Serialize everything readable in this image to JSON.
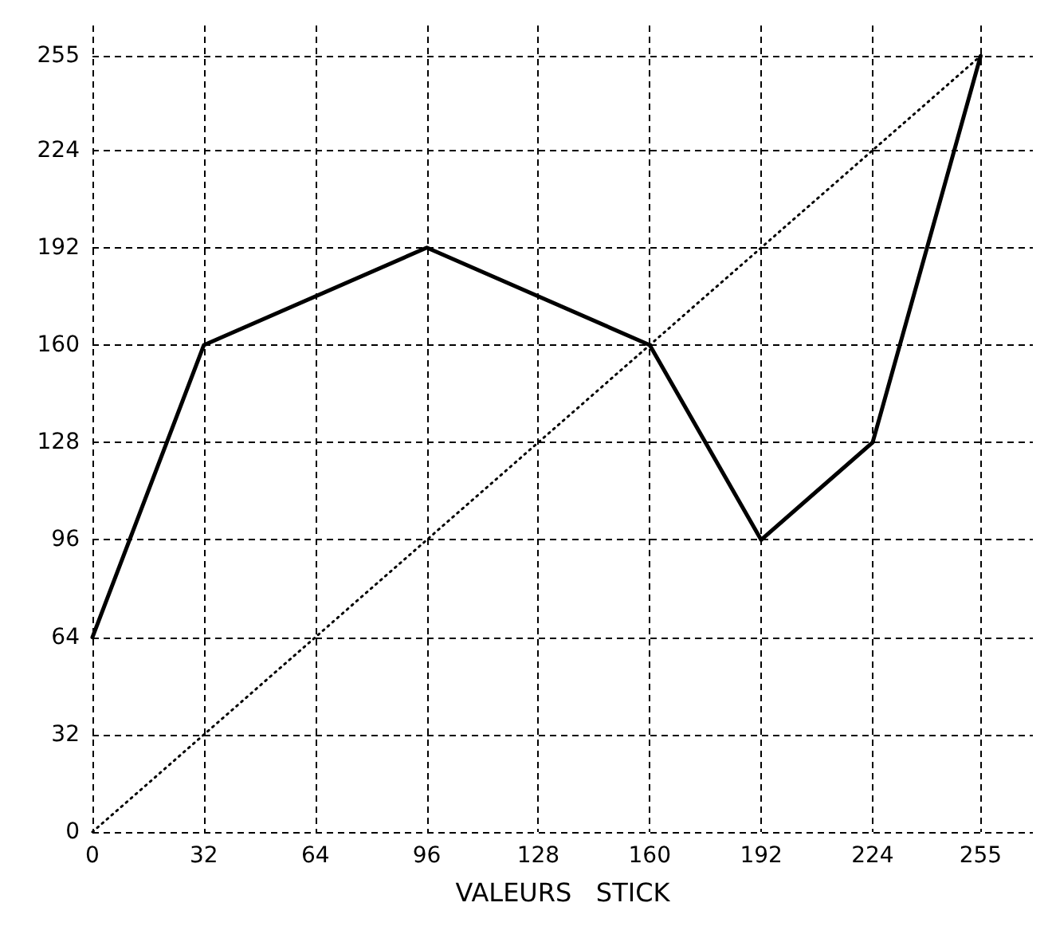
{
  "chart_data": {
    "type": "line",
    "xlabel": "VALEURS   STICK",
    "xlim": [
      0,
      270
    ],
    "ylim": [
      0,
      265
    ],
    "xticks": [
      0,
      32,
      64,
      96,
      128,
      160,
      192,
      224,
      255
    ],
    "yticks": [
      0,
      32,
      64,
      96,
      128,
      160,
      192,
      224,
      255
    ],
    "grid": true,
    "marker": "none",
    "series": [
      {
        "color": "#000000",
        "line_style": "solid",
        "x": [
          0,
          32,
          96,
          160,
          192,
          224,
          255
        ],
        "values": [
          64,
          160,
          192,
          160,
          96,
          128,
          255
        ]
      },
      {
        "color": "#000000",
        "line_style": "dotted",
        "x": [
          0,
          255
        ],
        "values": [
          0,
          255
        ]
      }
    ]
  }
}
